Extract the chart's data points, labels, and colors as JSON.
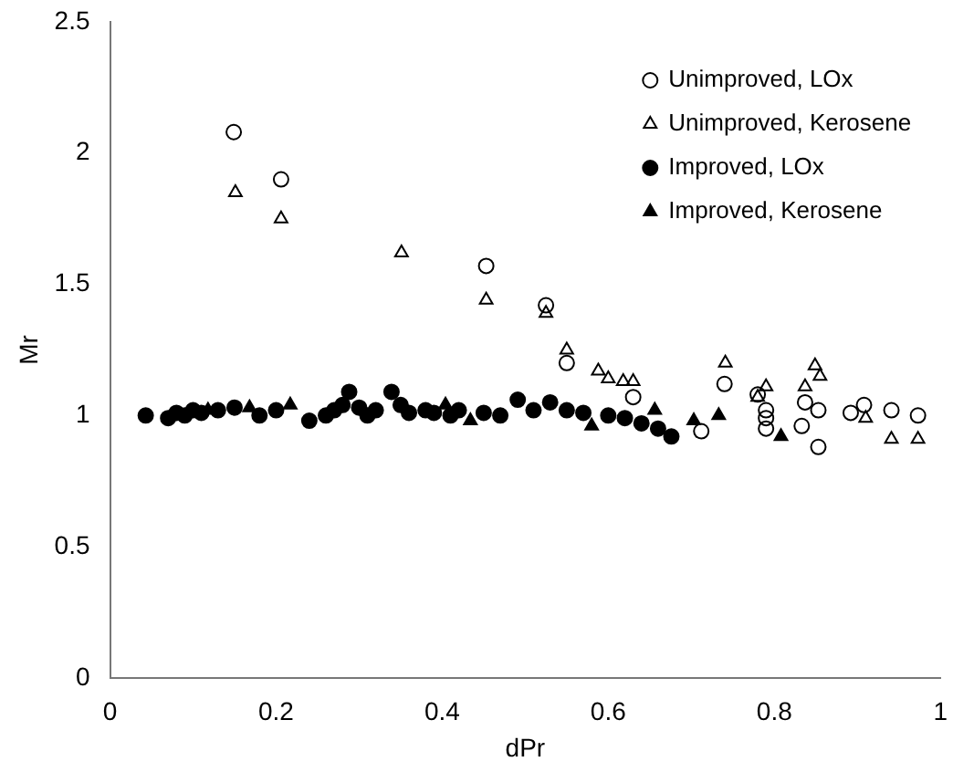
{
  "chart_data": {
    "type": "scatter",
    "xlabel": "dPr",
    "ylabel": "Mr",
    "xlim": [
      0,
      1
    ],
    "xticks": [
      0,
      0.2,
      0.4,
      0.6,
      0.8,
      1
    ],
    "ylim": [
      0,
      2.5
    ],
    "yticks": [
      0,
      0.5,
      1,
      1.5,
      2,
      2.5
    ],
    "grid": false,
    "legend": "top right",
    "series": [
      {
        "name": "Unimproved, LOx",
        "color": "#000000",
        "marker": "circle-open",
        "x": [
          0.149,
          0.206,
          0.453,
          0.525,
          0.55,
          0.63,
          0.712,
          0.74,
          0.78,
          0.79,
          0.79,
          0.79,
          0.833,
          0.837,
          0.853,
          0.853,
          0.892,
          0.908,
          0.941,
          0.973
        ],
        "values": [
          2.08,
          1.9,
          1.57,
          1.42,
          1.2,
          1.07,
          0.94,
          1.12,
          1.08,
          1.02,
          0.99,
          0.95,
          0.96,
          1.05,
          1.02,
          0.88,
          1.01,
          1.04,
          1.02,
          1.0
        ]
      },
      {
        "name": "Unimproved, Kerosene",
        "color": "#000000",
        "marker": "triangle-open",
        "x": [
          0.151,
          0.206,
          0.351,
          0.453,
          0.525,
          0.55,
          0.588,
          0.6,
          0.618,
          0.63,
          0.741,
          0.78,
          0.79,
          0.837,
          0.849,
          0.855,
          0.91,
          0.941,
          0.973
        ],
        "values": [
          1.85,
          1.75,
          1.62,
          1.44,
          1.39,
          1.25,
          1.17,
          1.14,
          1.13,
          1.13,
          1.2,
          1.07,
          1.11,
          1.11,
          1.19,
          1.15,
          0.99,
          0.91,
          0.91
        ]
      },
      {
        "name": "Improved, LOx",
        "color": "#000000",
        "marker": "circle",
        "x": [
          0.043,
          0.07,
          0.08,
          0.09,
          0.1,
          0.11,
          0.13,
          0.15,
          0.18,
          0.2,
          0.24,
          0.26,
          0.27,
          0.28,
          0.288,
          0.3,
          0.31,
          0.32,
          0.339,
          0.35,
          0.36,
          0.38,
          0.39,
          0.41,
          0.42,
          0.45,
          0.47,
          0.491,
          0.51,
          0.53,
          0.55,
          0.57,
          0.6,
          0.62,
          0.64,
          0.66,
          0.676
        ],
        "values": [
          1.0,
          0.99,
          1.01,
          1.0,
          1.02,
          1.01,
          1.02,
          1.03,
          1.0,
          1.02,
          0.98,
          1.0,
          1.02,
          1.04,
          1.09,
          1.03,
          1.0,
          1.02,
          1.09,
          1.04,
          1.01,
          1.02,
          1.01,
          1.0,
          1.02,
          1.01,
          1.0,
          1.06,
          1.02,
          1.05,
          1.02,
          1.01,
          1.0,
          0.99,
          0.97,
          0.95,
          0.92
        ]
      },
      {
        "name": "Improved, Kerosene",
        "color": "#000000",
        "marker": "triangle",
        "x": [
          0.118,
          0.168,
          0.217,
          0.404,
          0.434,
          0.58,
          0.656,
          0.703,
          0.733,
          0.808
        ],
        "values": [
          1.02,
          1.03,
          1.04,
          1.04,
          0.98,
          0.96,
          1.02,
          0.98,
          1.0,
          0.92
        ]
      }
    ]
  }
}
